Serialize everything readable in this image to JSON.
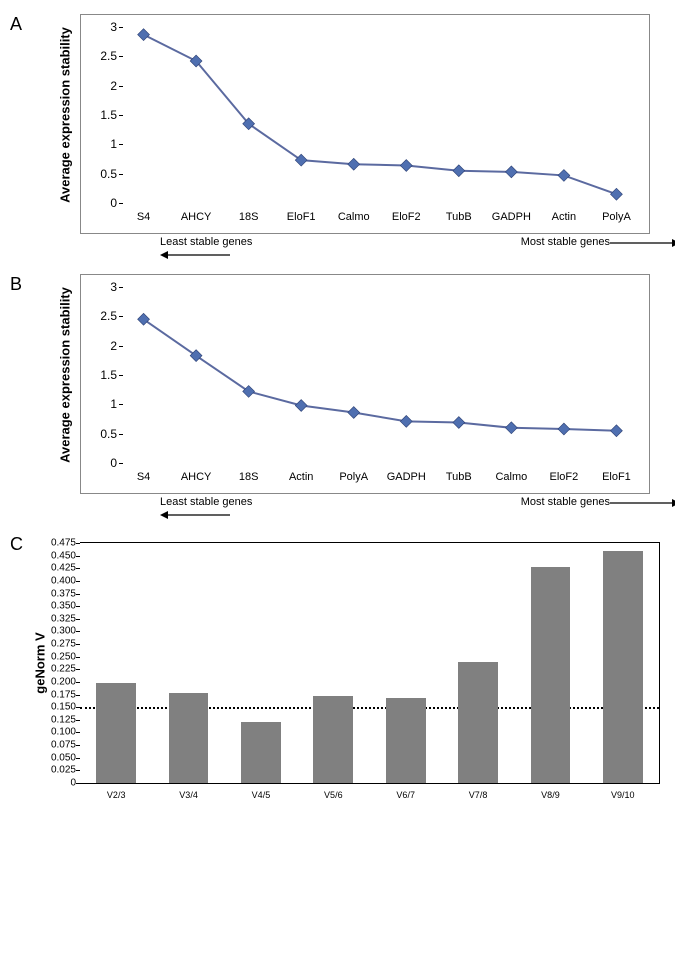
{
  "panelA": {
    "label": "A",
    "type": "line",
    "ylabel": "Average expression stability",
    "ylim": [
      0,
      3
    ],
    "ytick_step": 0.5,
    "categories": [
      "S4",
      "AHCY",
      "18S",
      "EloF1",
      "Calmo",
      "EloF2",
      "TubB",
      "GADPH",
      "Actin",
      "PolyA"
    ],
    "values": [
      2.87,
      2.42,
      1.35,
      0.73,
      0.66,
      0.64,
      0.55,
      0.53,
      0.47,
      0.15
    ],
    "line_color": "#5b6aa0",
    "marker_color": "#4f6fb0",
    "marker_size": 6,
    "line_width": 2,
    "label_fontsize": 11,
    "left_note": "Least stable genes",
    "right_note": "Most stable genes"
  },
  "panelB": {
    "label": "B",
    "type": "line",
    "ylabel": "Average expression stability",
    "ylim": [
      0,
      3
    ],
    "ytick_step": 0.5,
    "categories": [
      "S4",
      "AHCY",
      "18S",
      "Actin",
      "PolyA",
      "GADPH",
      "TubB",
      "Calmo",
      "EloF2",
      "EloF1"
    ],
    "values": [
      2.45,
      1.83,
      1.22,
      0.98,
      0.86,
      0.71,
      0.69,
      0.6,
      0.58,
      0.55
    ],
    "line_color": "#5b6aa0",
    "marker_color": "#4f6fb0",
    "marker_size": 6,
    "line_width": 2,
    "label_fontsize": 11,
    "left_note": "Least stable genes",
    "right_note": "Most stable genes"
  },
  "panelC": {
    "label": "C",
    "type": "bar",
    "ylabel": "geNorm V",
    "ylim": [
      0,
      0.475
    ],
    "ytick_step": 0.025,
    "categories": [
      "V2/3",
      "V3/4",
      "V4/5",
      "V5/6",
      "V6/7",
      "V7/8",
      "V8/9",
      "V9/10"
    ],
    "values": [
      0.197,
      0.178,
      0.12,
      0.173,
      0.168,
      0.24,
      0.428,
      0.46
    ],
    "bar_color": "#808080",
    "bar_width": 0.55,
    "threshold": 0.15,
    "threshold_style": "dotted",
    "label_fontsize": 9
  },
  "colors": {
    "background": "#ffffff",
    "border": "#888888",
    "axis": "#000000"
  }
}
